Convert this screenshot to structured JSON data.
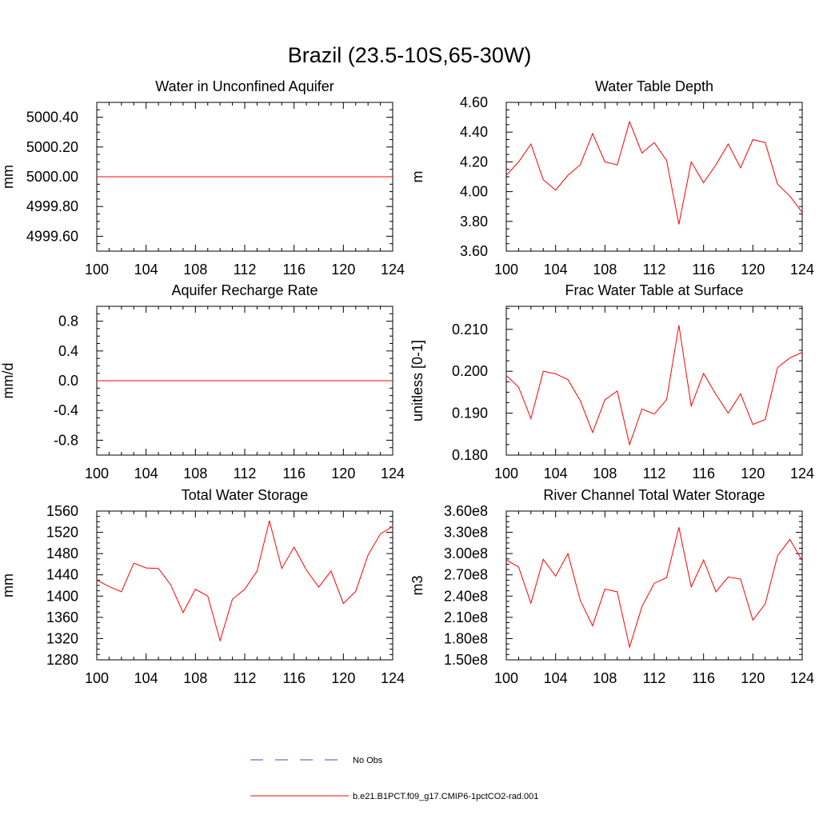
{
  "page_title": "Brazil (23.5-10S,65-30W)",
  "legend": {
    "position": "bottom-center",
    "entries": [
      {
        "label": "No Obs",
        "color": "#4a4aa8",
        "style": "dashed"
      },
      {
        "label": "b.e21.B1PCT.f09_g17.CMIP6-1pctCO2-rad.001",
        "color": "#ff0000",
        "style": "solid"
      }
    ]
  },
  "chart_data": [
    {
      "type": "line",
      "title": "Water in Unconfined Aquifer",
      "ylabel": "mm",
      "xlim": [
        100,
        124
      ],
      "ylim": [
        4999.5,
        5000.5
      ],
      "xticks": [
        100,
        104,
        108,
        112,
        116,
        120,
        124
      ],
      "xtick_labels": [
        "100",
        "104",
        "108",
        "112",
        "116",
        "120",
        "124"
      ],
      "yticks": [
        4999.6,
        4999.8,
        5000.0,
        5000.2,
        5000.4
      ],
      "ytick_labels": [
        "4999.60",
        "4999.80",
        "5000.00",
        "5000.20",
        "5000.40"
      ],
      "series": [
        {
          "color": "#ff0000",
          "x": [
            100,
            101,
            102,
            103,
            104,
            105,
            106,
            107,
            108,
            109,
            110,
            111,
            112,
            113,
            114,
            115,
            116,
            117,
            118,
            119,
            120,
            121,
            122,
            123,
            124
          ],
          "y": [
            5000,
            5000,
            5000,
            5000,
            5000,
            5000,
            5000,
            5000,
            5000,
            5000,
            5000,
            5000,
            5000,
            5000,
            5000,
            5000,
            5000,
            5000,
            5000,
            5000,
            5000,
            5000,
            5000,
            5000,
            5000
          ]
        }
      ]
    },
    {
      "type": "line",
      "title": "Water Table Depth",
      "ylabel": "m",
      "xlim": [
        100,
        124
      ],
      "ylim": [
        3.6,
        4.6
      ],
      "xticks": [
        100,
        104,
        108,
        112,
        116,
        120,
        124
      ],
      "xtick_labels": [
        "100",
        "104",
        "108",
        "112",
        "116",
        "120",
        "124"
      ],
      "yticks": [
        3.6,
        3.8,
        4.0,
        4.2,
        4.4,
        4.6
      ],
      "ytick_labels": [
        "3.60",
        "3.80",
        "4.00",
        "4.20",
        "4.40",
        "4.60"
      ],
      "series": [
        {
          "color": "#ff0000",
          "x": [
            100,
            101,
            102,
            103,
            104,
            105,
            106,
            107,
            108,
            109,
            110,
            111,
            112,
            113,
            114,
            115,
            116,
            117,
            118,
            119,
            120,
            121,
            122,
            123,
            124
          ],
          "y": [
            4.11,
            4.2,
            4.32,
            4.08,
            4.01,
            4.11,
            4.18,
            4.39,
            4.2,
            4.18,
            4.47,
            4.26,
            4.33,
            4.21,
            3.78,
            4.2,
            4.06,
            4.18,
            4.32,
            4.16,
            4.35,
            4.33,
            4.05,
            3.97,
            3.86
          ]
        }
      ]
    },
    {
      "type": "line",
      "title": "Aquifer Recharge Rate",
      "ylabel": "mm/d",
      "xlim": [
        100,
        124
      ],
      "ylim": [
        -1.0,
        1.0
      ],
      "xticks": [
        100,
        104,
        108,
        112,
        116,
        120,
        124
      ],
      "xtick_labels": [
        "100",
        "104",
        "108",
        "112",
        "116",
        "120",
        "124"
      ],
      "yticks": [
        -0.8,
        -0.4,
        0.0,
        0.4,
        0.8
      ],
      "ytick_labels": [
        "-0.8",
        "-0.4",
        "0.0",
        "0.4",
        "0.8"
      ],
      "series": [
        {
          "color": "#ff0000",
          "x": [
            100,
            101,
            102,
            103,
            104,
            105,
            106,
            107,
            108,
            109,
            110,
            111,
            112,
            113,
            114,
            115,
            116,
            117,
            118,
            119,
            120,
            121,
            122,
            123,
            124
          ],
          "y": [
            0,
            0,
            0,
            0,
            0,
            0,
            0,
            0,
            0,
            0,
            0,
            0,
            0,
            0,
            0,
            0,
            0,
            0,
            0,
            0,
            0,
            0,
            0,
            0,
            0
          ]
        }
      ]
    },
    {
      "type": "line",
      "title": "Frac Water Table at Surface",
      "ylabel": "unitless [0-1]",
      "xlim": [
        100,
        124
      ],
      "ylim": [
        0.18,
        0.2155
      ],
      "xticks": [
        100,
        104,
        108,
        112,
        116,
        120,
        124
      ],
      "xtick_labels": [
        "100",
        "104",
        "108",
        "112",
        "116",
        "120",
        "124"
      ],
      "yticks": [
        0.18,
        0.19,
        0.2,
        0.21
      ],
      "ytick_labels": [
        "0.180",
        "0.190",
        "0.200",
        "0.210"
      ],
      "series": [
        {
          "color": "#ff0000",
          "x": [
            100,
            101,
            102,
            103,
            104,
            105,
            106,
            107,
            108,
            109,
            110,
            111,
            112,
            113,
            114,
            115,
            116,
            117,
            118,
            119,
            120,
            121,
            122,
            123,
            124
          ],
          "y": [
            0.199,
            0.1962,
            0.1887,
            0.2,
            0.1994,
            0.198,
            0.193,
            0.1854,
            0.1932,
            0.1953,
            0.1825,
            0.191,
            0.1898,
            0.1932,
            0.211,
            0.1917,
            0.1995,
            0.1945,
            0.19,
            0.1946,
            0.1873,
            0.1885,
            0.2009,
            0.2032,
            0.2045
          ]
        }
      ]
    },
    {
      "type": "line",
      "title": "Total Water Storage",
      "ylabel": "mm",
      "xlim": [
        100,
        124
      ],
      "ylim": [
        1280,
        1560
      ],
      "xticks": [
        100,
        104,
        108,
        112,
        116,
        120,
        124
      ],
      "xtick_labels": [
        "100",
        "104",
        "108",
        "112",
        "116",
        "120",
        "124"
      ],
      "yticks": [
        1280,
        1320,
        1360,
        1400,
        1440,
        1480,
        1520,
        1560
      ],
      "ytick_labels": [
        "1280",
        "1320",
        "1360",
        "1400",
        "1440",
        "1480",
        "1520",
        "1560"
      ],
      "series": [
        {
          "color": "#ff0000",
          "x": [
            100,
            101,
            102,
            103,
            104,
            105,
            106,
            107,
            108,
            109,
            110,
            111,
            112,
            113,
            114,
            115,
            116,
            117,
            118,
            119,
            120,
            121,
            122,
            123,
            124
          ],
          "y": [
            1430,
            1418,
            1408,
            1462,
            1453,
            1452,
            1421,
            1369,
            1413,
            1400,
            1316,
            1394,
            1413,
            1447,
            1542,
            1452,
            1492,
            1449,
            1417,
            1447,
            1386,
            1409,
            1477,
            1517,
            1531
          ]
        }
      ]
    },
    {
      "type": "line",
      "title": "River Channel Total Water Storage",
      "ylabel": "m3",
      "xlim": [
        100,
        124
      ],
      "ylim": [
        150000000,
        360000000
      ],
      "xticks": [
        100,
        104,
        108,
        112,
        116,
        120,
        124
      ],
      "xtick_labels": [
        "100",
        "104",
        "108",
        "112",
        "116",
        "120",
        "124"
      ],
      "yticks": [
        150000000,
        180000000,
        210000000,
        240000000,
        270000000,
        300000000,
        330000000,
        360000000
      ],
      "ytick_labels": [
        "1.50e8",
        "1.80e8",
        "2.10e8",
        "2.40e8",
        "2.70e8",
        "3.00e8",
        "3.30e8",
        "3.60e8"
      ],
      "series": [
        {
          "color": "#ff0000",
          "x": [
            100,
            101,
            102,
            103,
            104,
            105,
            106,
            107,
            108,
            109,
            110,
            111,
            112,
            113,
            114,
            115,
            116,
            117,
            118,
            119,
            120,
            121,
            122,
            123,
            124
          ],
          "y": [
            291000000,
            281000000,
            230000000,
            292000000,
            268000000,
            300000000,
            234000000,
            198000000,
            250000000,
            246000000,
            168000000,
            225000000,
            258000000,
            266000000,
            337000000,
            253000000,
            291000000,
            246000000,
            267000000,
            264000000,
            206000000,
            229000000,
            297000000,
            320000000,
            290000000
          ]
        }
      ]
    }
  ]
}
